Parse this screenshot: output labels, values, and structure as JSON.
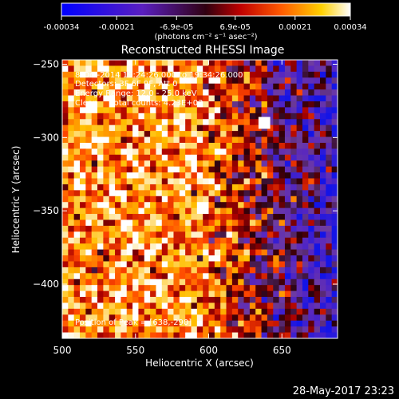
{
  "colorbar": {
    "tick_labels": [
      "-0.00034",
      "-0.00021",
      "-6.9e-05",
      "6.9e-05",
      "0.00021",
      "0.00034"
    ],
    "tick_values": [
      -0.00034,
      -0.00021,
      -6.9e-05,
      6.9e-05,
      0.00021,
      0.00034
    ],
    "range": [
      -0.00034,
      0.00034
    ],
    "unit_label": "(photons cm⁻² s⁻¹ asec⁻²)",
    "colormap": "blue-purple-red-orange-yellow-white"
  },
  "chart_data": {
    "type": "heatmap",
    "title": "Reconstructed RHESSI Image",
    "xlabel": "Heliocentric X (arcsec)",
    "ylabel": "Heliocentric Y (arcsec)",
    "xlim": [
      500,
      688
    ],
    "ylim": [
      -437,
      -247
    ],
    "x_ticks": [
      500,
      550,
      600,
      650
    ],
    "y_ticks": [
      -250,
      -300,
      -350,
      -400
    ],
    "x_tick_labels": [
      "500",
      "550",
      "600",
      "650"
    ],
    "y_tick_labels": [
      "-250",
      "-300",
      "-350",
      "-400"
    ],
    "grid": false,
    "colors": {
      "low": "#1010ff",
      "mid": "#7040b0",
      "high": "#ff3000",
      "peak": "#ffffff"
    },
    "annotations": [
      "8-Oct-2014 19:24:26.000 to 19:34:26.000",
      "Detectors: 3F 6F 9F, Att 0",
      "Energy Range: 12.0 - 25.0 keV",
      "Clean     Total counts: 4.23E+03"
    ],
    "peak_text": "Position of Peak = [638,-290]",
    "peak_position": [
      638,
      -290
    ]
  },
  "footer": {
    "timestamp": "28-May-2017 23:23"
  }
}
